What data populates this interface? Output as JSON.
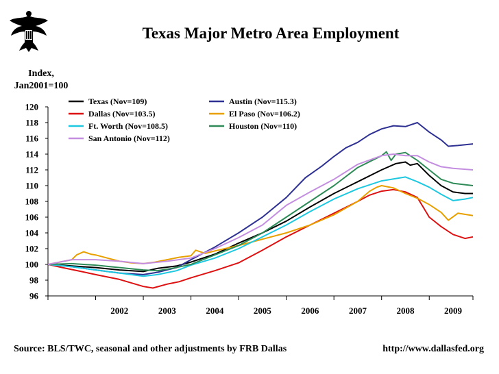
{
  "header": {
    "title": "Texas Major Metro Area Employment",
    "y_axis_label_line1": "Index,",
    "y_axis_label_line2": "Jan2001=100"
  },
  "footer": {
    "source": "Source: BLS/TWC, seasonal and other adjustments by FRB Dallas",
    "url": "http://www.dallasfed.org"
  },
  "logo": {
    "name": "federal-reserve-eagle-seal",
    "icon": "eagle-seal-icon"
  },
  "chart_data": {
    "type": "line",
    "title": "Texas Major Metro Area Employment",
    "ylabel": "Index, Jan2001=100",
    "xlabel": "",
    "ylim": [
      96,
      120
    ],
    "yticks": [
      96,
      98,
      100,
      102,
      104,
      106,
      108,
      110,
      112,
      114,
      116,
      118,
      120
    ],
    "xlim": [
      2001.0,
      2009.917
    ],
    "xtick_labels": [
      "2002",
      "2003",
      "2004",
      "2005",
      "2006",
      "2007",
      "2008",
      "2009"
    ],
    "grid": false,
    "legend_position": "top-left inside",
    "series": [
      {
        "name": "Texas (Nov=109)",
        "color": "#000000",
        "points": [
          [
            2001.0,
            100
          ],
          [
            2001.5,
            99.8
          ],
          [
            2002.0,
            99.6
          ],
          [
            2002.5,
            99.3
          ],
          [
            2003.0,
            99.1
          ],
          [
            2003.3,
            99.5
          ],
          [
            2003.7,
            99.8
          ],
          [
            2004.0,
            100.3
          ],
          [
            2004.5,
            101.3
          ],
          [
            2005.0,
            102.7
          ],
          [
            2005.5,
            104.0
          ],
          [
            2006.0,
            105.5
          ],
          [
            2006.5,
            107.3
          ],
          [
            2007.0,
            109.0
          ],
          [
            2007.5,
            110.5
          ],
          [
            2008.0,
            112.0
          ],
          [
            2008.3,
            112.8
          ],
          [
            2008.5,
            113.0
          ],
          [
            2008.6,
            112.6
          ],
          [
            2008.75,
            112.8
          ],
          [
            2009.0,
            111.3
          ],
          [
            2009.25,
            110.0
          ],
          [
            2009.5,
            109.2
          ],
          [
            2009.75,
            109.0
          ],
          [
            2009.917,
            109.0
          ]
        ]
      },
      {
        "name": "Austin (Nov=115.3)",
        "color": "#2e3192",
        "points": [
          [
            2001.0,
            100
          ],
          [
            2001.5,
            99.7
          ],
          [
            2002.0,
            99.3
          ],
          [
            2002.5,
            98.9
          ],
          [
            2003.0,
            98.7
          ],
          [
            2003.3,
            99.0
          ],
          [
            2003.7,
            99.6
          ],
          [
            2004.0,
            100.6
          ],
          [
            2004.5,
            102.2
          ],
          [
            2005.0,
            104.0
          ],
          [
            2005.5,
            106.0
          ],
          [
            2006.0,
            108.5
          ],
          [
            2006.4,
            111.0
          ],
          [
            2006.75,
            112.5
          ],
          [
            2007.0,
            113.7
          ],
          [
            2007.25,
            114.8
          ],
          [
            2007.5,
            115.5
          ],
          [
            2007.75,
            116.5
          ],
          [
            2008.0,
            117.2
          ],
          [
            2008.25,
            117.6
          ],
          [
            2008.5,
            117.5
          ],
          [
            2008.75,
            118.0
          ],
          [
            2009.0,
            116.8
          ],
          [
            2009.25,
            115.8
          ],
          [
            2009.4,
            115.0
          ],
          [
            2009.6,
            115.1
          ],
          [
            2009.917,
            115.3
          ]
        ]
      },
      {
        "name": "Dallas (Nov=103.5)",
        "color": "#dd1111",
        "points": [
          [
            2001.0,
            100
          ],
          [
            2001.3,
            99.6
          ],
          [
            2001.7,
            99.1
          ],
          [
            2002.0,
            98.7
          ],
          [
            2002.5,
            98.1
          ],
          [
            2003.0,
            97.2
          ],
          [
            2003.2,
            97.0
          ],
          [
            2003.5,
            97.5
          ],
          [
            2003.75,
            97.8
          ],
          [
            2004.0,
            98.3
          ],
          [
            2004.5,
            99.2
          ],
          [
            2005.0,
            100.2
          ],
          [
            2005.5,
            101.8
          ],
          [
            2006.0,
            103.5
          ],
          [
            2006.5,
            105.0
          ],
          [
            2007.0,
            106.5
          ],
          [
            2007.5,
            108.0
          ],
          [
            2007.75,
            108.8
          ],
          [
            2008.0,
            109.3
          ],
          [
            2008.25,
            109.5
          ],
          [
            2008.5,
            109.2
          ],
          [
            2008.75,
            108.5
          ],
          [
            2008.9,
            107.0
          ],
          [
            2009.0,
            106.0
          ],
          [
            2009.25,
            104.8
          ],
          [
            2009.5,
            103.8
          ],
          [
            2009.75,
            103.3
          ],
          [
            2009.917,
            103.5
          ]
        ]
      },
      {
        "name": "El Paso (Nov=106.2)",
        "color": "#e8a000",
        "points": [
          [
            2001.0,
            100
          ],
          [
            2001.25,
            100.3
          ],
          [
            2001.5,
            100.6
          ],
          [
            2001.6,
            101.2
          ],
          [
            2001.75,
            101.6
          ],
          [
            2001.9,
            101.3
          ],
          [
            2002.0,
            101.2
          ],
          [
            2002.25,
            100.8
          ],
          [
            2002.5,
            100.4
          ],
          [
            2002.75,
            100.2
          ],
          [
            2003.0,
            100.1
          ],
          [
            2003.25,
            100.3
          ],
          [
            2003.5,
            100.6
          ],
          [
            2003.75,
            100.9
          ],
          [
            2004.0,
            101.1
          ],
          [
            2004.1,
            101.8
          ],
          [
            2004.3,
            101.4
          ],
          [
            2004.5,
            101.7
          ],
          [
            2005.0,
            102.4
          ],
          [
            2005.5,
            103.2
          ],
          [
            2006.0,
            104.0
          ],
          [
            2006.5,
            105.0
          ],
          [
            2007.0,
            106.3
          ],
          [
            2007.5,
            108.0
          ],
          [
            2007.75,
            109.3
          ],
          [
            2007.9,
            109.8
          ],
          [
            2008.0,
            110.0
          ],
          [
            2008.25,
            109.7
          ],
          [
            2008.5,
            109.0
          ],
          [
            2008.75,
            108.4
          ],
          [
            2009.0,
            107.6
          ],
          [
            2009.25,
            106.6
          ],
          [
            2009.4,
            105.6
          ],
          [
            2009.6,
            106.5
          ],
          [
            2009.917,
            106.2
          ]
        ]
      },
      {
        "name": "Ft. Worth (Nov=108.5)",
        "color": "#1ec8e0",
        "points": [
          [
            2001.0,
            100
          ],
          [
            2001.5,
            99.7
          ],
          [
            2002.0,
            99.3
          ],
          [
            2002.5,
            98.9
          ],
          [
            2003.0,
            98.5
          ],
          [
            2003.3,
            98.7
          ],
          [
            2003.7,
            99.2
          ],
          [
            2004.0,
            99.9
          ],
          [
            2004.5,
            100.8
          ],
          [
            2005.0,
            102.0
          ],
          [
            2005.5,
            103.5
          ],
          [
            2006.0,
            105.0
          ],
          [
            2006.5,
            106.7
          ],
          [
            2007.0,
            108.3
          ],
          [
            2007.5,
            109.6
          ],
          [
            2008.0,
            110.6
          ],
          [
            2008.5,
            111.1
          ],
          [
            2008.75,
            110.5
          ],
          [
            2009.0,
            109.8
          ],
          [
            2009.25,
            108.9
          ],
          [
            2009.5,
            108.1
          ],
          [
            2009.75,
            108.3
          ],
          [
            2009.917,
            108.5
          ]
        ]
      },
      {
        "name": "Houston (Nov=110)",
        "color": "#2e8b57",
        "points": [
          [
            2001.0,
            100
          ],
          [
            2001.5,
            100.1
          ],
          [
            2002.0,
            99.9
          ],
          [
            2002.5,
            99.6
          ],
          [
            2003.0,
            99.3
          ],
          [
            2003.3,
            99.2
          ],
          [
            2003.6,
            99.5
          ],
          [
            2004.0,
            100.0
          ],
          [
            2004.5,
            101.2
          ],
          [
            2005.0,
            102.4
          ],
          [
            2005.5,
            104.0
          ],
          [
            2006.0,
            106.0
          ],
          [
            2006.5,
            108.0
          ],
          [
            2007.0,
            110.0
          ],
          [
            2007.5,
            112.3
          ],
          [
            2008.0,
            113.8
          ],
          [
            2008.1,
            114.3
          ],
          [
            2008.2,
            113.2
          ],
          [
            2008.3,
            114.0
          ],
          [
            2008.5,
            114.2
          ],
          [
            2008.75,
            113.2
          ],
          [
            2009.0,
            112.0
          ],
          [
            2009.25,
            110.8
          ],
          [
            2009.5,
            110.3
          ],
          [
            2009.917,
            110.0
          ]
        ]
      },
      {
        "name": "San Antonio (Nov=112)",
        "color": "#c48ee0",
        "points": [
          [
            2001.0,
            100
          ],
          [
            2001.5,
            100.6
          ],
          [
            2002.0,
            100.6
          ],
          [
            2002.5,
            100.4
          ],
          [
            2003.0,
            100.1
          ],
          [
            2003.5,
            100.4
          ],
          [
            2004.0,
            100.8
          ],
          [
            2004.5,
            102.0
          ],
          [
            2005.0,
            103.4
          ],
          [
            2005.5,
            105.0
          ],
          [
            2006.0,
            107.5
          ],
          [
            2006.5,
            109.2
          ],
          [
            2007.0,
            110.8
          ],
          [
            2007.5,
            112.7
          ],
          [
            2008.0,
            113.8
          ],
          [
            2008.25,
            114.0
          ],
          [
            2008.5,
            113.8
          ],
          [
            2008.75,
            113.8
          ],
          [
            2009.0,
            113.0
          ],
          [
            2009.25,
            112.4
          ],
          [
            2009.5,
            112.2
          ],
          [
            2009.917,
            112.0
          ]
        ]
      }
    ]
  }
}
